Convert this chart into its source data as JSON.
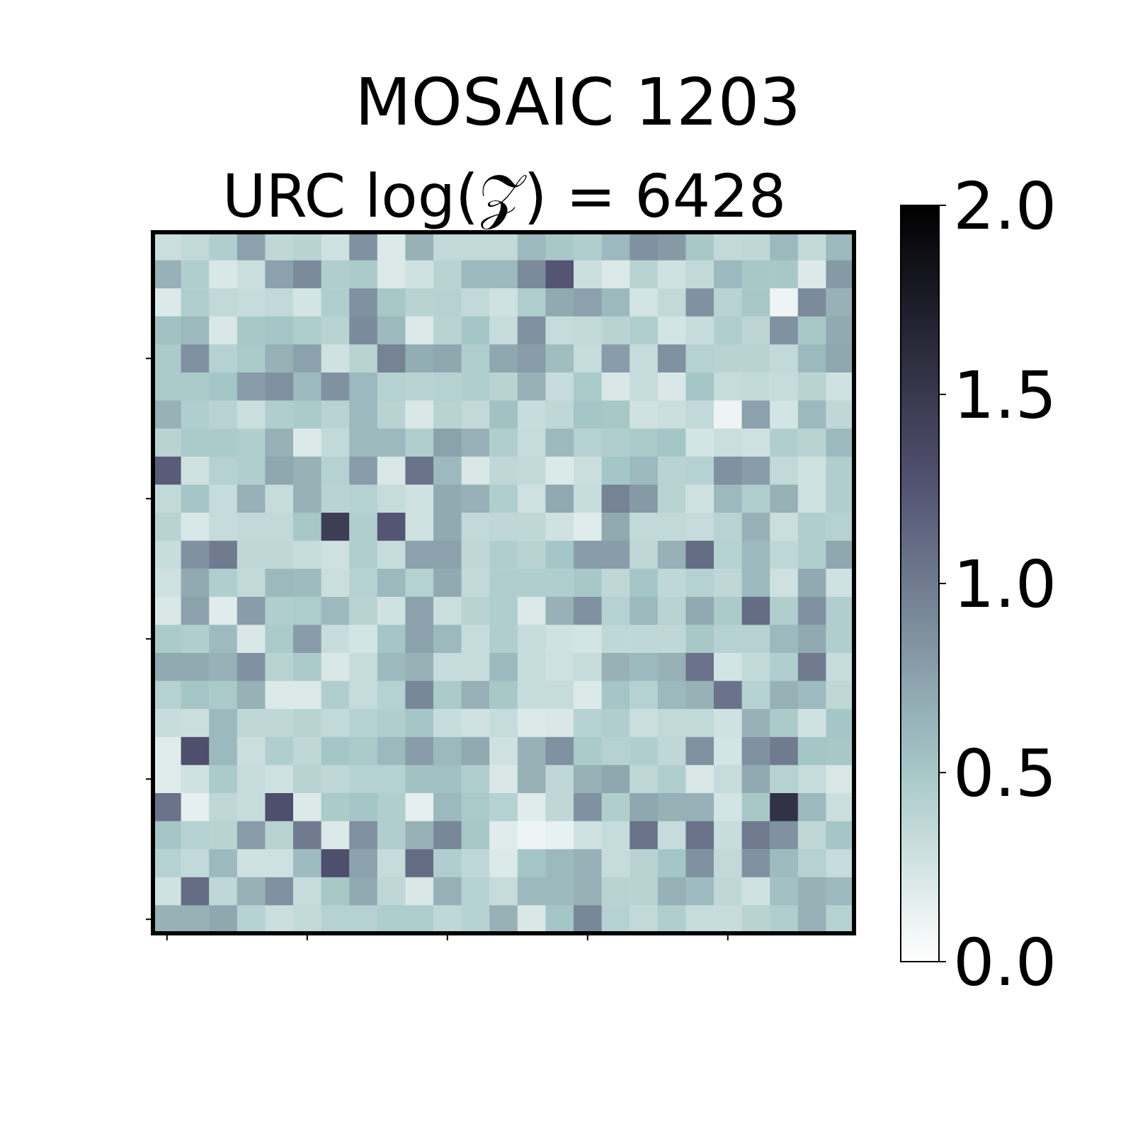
{
  "chart_data": {
    "type": "heatmap",
    "title": "MOSAIC 1203",
    "subtitle": "URC log(𝒵) = 6428",
    "categories": [
      null,
      null,
      null,
      null,
      null,
      null,
      null,
      null,
      null,
      null,
      null,
      null,
      null,
      null,
      null,
      null,
      null,
      null,
      null,
      null,
      null,
      null,
      null,
      null,
      null
    ],
    "y_categories": [
      null,
      null,
      null,
      null,
      null,
      null,
      null,
      null,
      null,
      null,
      null,
      null,
      null,
      null,
      null,
      null,
      null,
      null,
      null,
      null,
      null,
      null,
      null,
      null,
      null
    ],
    "cells": [
      [
        0.3,
        0.35,
        0.45,
        0.75,
        0.37,
        0.4,
        0.28,
        0.85,
        0.2,
        0.65,
        0.35,
        0.35,
        0.35,
        0.6,
        0.5,
        0.45,
        0.6,
        0.85,
        0.8,
        0.5,
        0.35,
        0.37,
        0.6,
        0.35,
        0.6
      ],
      [
        0.65,
        0.45,
        0.22,
        0.3,
        0.75,
        0.9,
        0.45,
        0.48,
        0.2,
        0.27,
        0.4,
        0.6,
        0.6,
        0.9,
        1.25,
        0.3,
        0.2,
        0.4,
        0.27,
        0.35,
        0.6,
        0.5,
        0.5,
        0.2,
        0.8
      ],
      [
        0.2,
        0.45,
        0.35,
        0.33,
        0.35,
        0.25,
        0.45,
        0.85,
        0.5,
        0.4,
        0.42,
        0.35,
        0.27,
        0.45,
        0.7,
        0.75,
        0.6,
        0.25,
        0.35,
        0.85,
        0.4,
        0.5,
        0.1,
        0.9,
        0.65
      ],
      [
        0.55,
        0.6,
        0.22,
        0.5,
        0.52,
        0.47,
        0.4,
        0.9,
        0.6,
        0.2,
        0.4,
        0.52,
        0.33,
        0.85,
        0.33,
        0.35,
        0.4,
        0.45,
        0.25,
        0.32,
        0.45,
        0.38,
        0.85,
        0.5,
        0.7
      ],
      [
        0.48,
        0.85,
        0.42,
        0.48,
        0.65,
        0.75,
        0.27,
        0.4,
        0.95,
        0.68,
        0.72,
        0.45,
        0.72,
        0.78,
        0.57,
        0.33,
        0.78,
        0.33,
        0.85,
        0.42,
        0.4,
        0.4,
        0.35,
        0.6,
        0.72
      ],
      [
        0.48,
        0.48,
        0.52,
        0.78,
        0.85,
        0.6,
        0.85,
        0.6,
        0.42,
        0.4,
        0.42,
        0.45,
        0.4,
        0.65,
        0.33,
        0.48,
        0.22,
        0.33,
        0.22,
        0.52,
        0.33,
        0.35,
        0.33,
        0.4,
        0.27
      ],
      [
        0.65,
        0.45,
        0.4,
        0.3,
        0.45,
        0.48,
        0.4,
        0.6,
        0.4,
        0.22,
        0.4,
        0.35,
        0.55,
        0.32,
        0.37,
        0.52,
        0.5,
        0.27,
        0.3,
        0.35,
        0.1,
        0.75,
        0.25,
        0.6,
        0.37
      ],
      [
        0.4,
        0.48,
        0.48,
        0.45,
        0.65,
        0.2,
        0.35,
        0.6,
        0.6,
        0.45,
        0.75,
        0.65,
        0.45,
        0.33,
        0.6,
        0.42,
        0.45,
        0.48,
        0.52,
        0.25,
        0.3,
        0.28,
        0.45,
        0.4,
        0.6
      ],
      [
        1.2,
        0.28,
        0.42,
        0.45,
        0.72,
        0.65,
        0.42,
        0.78,
        0.22,
        1.05,
        0.6,
        0.22,
        0.37,
        0.35,
        0.2,
        0.3,
        0.52,
        0.6,
        0.4,
        0.42,
        0.85,
        0.78,
        0.35,
        0.27,
        0.45
      ],
      [
        0.35,
        0.52,
        0.33,
        0.65,
        0.33,
        0.65,
        0.4,
        0.42,
        0.33,
        0.27,
        0.7,
        0.65,
        0.45,
        0.28,
        0.7,
        0.33,
        0.95,
        0.8,
        0.4,
        0.27,
        0.6,
        0.45,
        0.65,
        0.27,
        0.45
      ],
      [
        0.4,
        0.22,
        0.33,
        0.35,
        0.35,
        0.5,
        1.45,
        0.45,
        1.25,
        0.27,
        0.7,
        0.35,
        0.37,
        0.37,
        0.27,
        0.18,
        0.7,
        0.35,
        0.35,
        0.33,
        0.4,
        0.65,
        0.3,
        0.45,
        0.42
      ],
      [
        0.32,
        0.85,
        1.0,
        0.37,
        0.37,
        0.33,
        0.28,
        0.45,
        0.33,
        0.75,
        0.75,
        0.37,
        0.45,
        0.4,
        0.52,
        0.78,
        0.78,
        0.37,
        0.65,
        1.1,
        0.42,
        0.6,
        0.37,
        0.45,
        0.72
      ],
      [
        0.28,
        0.7,
        0.45,
        0.35,
        0.6,
        0.58,
        0.3,
        0.42,
        0.6,
        0.42,
        0.7,
        0.35,
        0.45,
        0.45,
        0.45,
        0.5,
        0.37,
        0.52,
        0.37,
        0.42,
        0.37,
        0.6,
        0.28,
        0.7,
        0.27
      ],
      [
        0.22,
        0.75,
        0.18,
        0.78,
        0.45,
        0.47,
        0.6,
        0.4,
        0.27,
        0.75,
        0.3,
        0.4,
        0.45,
        0.2,
        0.65,
        0.85,
        0.42,
        0.6,
        0.4,
        0.7,
        0.48,
        1.1,
        0.45,
        0.85,
        0.45
      ],
      [
        0.48,
        0.45,
        0.58,
        0.22,
        0.48,
        0.78,
        0.32,
        0.25,
        0.52,
        0.75,
        0.6,
        0.32,
        0.45,
        0.33,
        0.27,
        0.25,
        0.37,
        0.37,
        0.37,
        0.5,
        0.42,
        0.42,
        0.6,
        0.7,
        0.45
      ],
      [
        0.7,
        0.7,
        0.65,
        0.85,
        0.4,
        0.48,
        0.22,
        0.33,
        0.6,
        0.65,
        0.33,
        0.33,
        0.6,
        0.33,
        0.28,
        0.33,
        0.65,
        0.6,
        0.65,
        1.05,
        0.25,
        0.35,
        0.45,
        1.0,
        0.33
      ],
      [
        0.42,
        0.52,
        0.48,
        0.65,
        0.2,
        0.2,
        0.45,
        0.33,
        0.42,
        0.92,
        0.48,
        0.65,
        0.5,
        0.32,
        0.32,
        0.2,
        0.52,
        0.42,
        0.6,
        0.65,
        1.05,
        0.42,
        0.65,
        0.58,
        0.37
      ],
      [
        0.32,
        0.3,
        0.6,
        0.37,
        0.37,
        0.4,
        0.35,
        0.42,
        0.45,
        0.52,
        0.32,
        0.27,
        0.33,
        0.2,
        0.22,
        0.42,
        0.45,
        0.3,
        0.35,
        0.35,
        0.27,
        0.65,
        0.48,
        0.27,
        0.52
      ],
      [
        0.18,
        1.3,
        0.6,
        0.3,
        0.45,
        0.37,
        0.52,
        0.48,
        0.6,
        0.78,
        0.6,
        0.7,
        0.27,
        0.65,
        0.85,
        0.48,
        0.42,
        0.45,
        0.37,
        0.85,
        0.25,
        0.85,
        1.0,
        0.52,
        0.5
      ],
      [
        0.18,
        0.27,
        0.48,
        0.33,
        0.27,
        0.4,
        0.37,
        0.42,
        0.42,
        0.55,
        0.55,
        0.45,
        0.22,
        0.65,
        0.37,
        0.65,
        0.72,
        0.37,
        0.45,
        0.22,
        0.33,
        0.7,
        0.42,
        0.33,
        0.22
      ],
      [
        1.05,
        0.15,
        0.37,
        0.32,
        1.3,
        0.2,
        0.48,
        0.52,
        0.45,
        0.15,
        0.6,
        0.48,
        0.42,
        0.18,
        0.37,
        0.85,
        0.45,
        0.72,
        0.65,
        0.65,
        0.25,
        0.5,
        1.55,
        0.6,
        0.3
      ],
      [
        0.52,
        0.42,
        0.4,
        0.78,
        0.4,
        1.0,
        0.2,
        0.85,
        0.45,
        0.65,
        0.92,
        0.5,
        0.18,
        0.1,
        0.13,
        0.27,
        0.33,
        1.05,
        0.33,
        1.05,
        0.32,
        1.0,
        0.85,
        0.37,
        0.52
      ],
      [
        0.42,
        0.35,
        0.6,
        0.28,
        0.28,
        0.58,
        1.3,
        0.75,
        0.33,
        1.1,
        0.45,
        0.37,
        0.2,
        0.52,
        0.6,
        0.65,
        0.33,
        0.4,
        0.52,
        0.85,
        0.35,
        0.85,
        0.58,
        0.42,
        0.33
      ],
      [
        0.27,
        1.1,
        0.37,
        0.65,
        0.85,
        0.32,
        0.5,
        0.7,
        0.37,
        0.22,
        0.65,
        0.42,
        0.33,
        0.6,
        0.6,
        0.65,
        0.4,
        0.4,
        0.65,
        0.58,
        0.37,
        0.27,
        0.55,
        0.65,
        0.6
      ],
      [
        0.65,
        0.65,
        0.72,
        0.42,
        0.3,
        0.35,
        0.42,
        0.42,
        0.47,
        0.47,
        0.37,
        0.42,
        0.65,
        0.22,
        0.52,
        0.92,
        0.42,
        0.35,
        0.45,
        0.32,
        0.32,
        0.4,
        0.45,
        0.65,
        0.42
      ]
    ],
    "clim": [
      0,
      2
    ],
    "cticks": [
      {
        "value": 0,
        "label": "0.0"
      },
      {
        "value": 0.5,
        "label": "0.5"
      },
      {
        "value": 1,
        "label": "1.0"
      },
      {
        "value": 1.5,
        "label": "1.5"
      },
      {
        "value": 2,
        "label": "2.0"
      }
    ]
  }
}
